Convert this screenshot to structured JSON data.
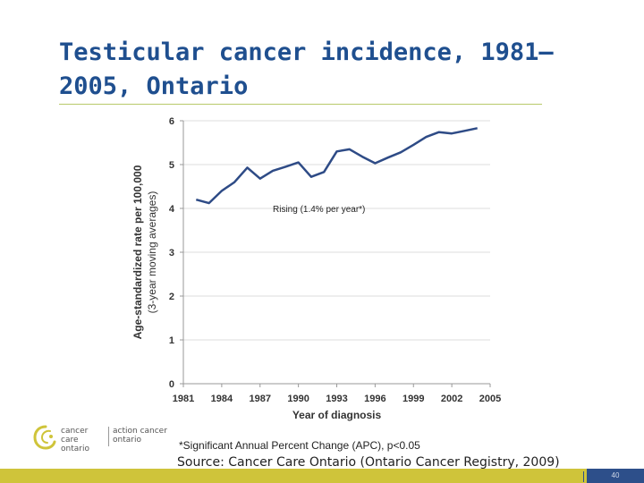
{
  "slide": {
    "title_line1": "Testicular cancer  incidence, 1981–",
    "title_line2": "2005, Ontario",
    "footnote": "*Significant Annual Percent Change (APC), p<0.05",
    "source": "Source: Cancer Care Ontario (Ontario Cancer Registry, 2009)",
    "page_number": "40",
    "logo_text_left": "cancer care ontario",
    "logo_text_right": "action cancer ontario",
    "colors": {
      "title": "#1f4f8f",
      "footer_bar": "#cfc43a",
      "footer_page": "#2d4f8a",
      "line": "#2e4b86",
      "logo": "#cfc43a"
    }
  },
  "chart_data": {
    "type": "line",
    "xlabel": "Year of diagnosis",
    "ylabel": "Age-standardized rate per 100,000",
    "ylabel_sub": "(3-year moving averages)",
    "xlim": [
      1981,
      2005
    ],
    "ylim": [
      0,
      6
    ],
    "xticks": [
      1981,
      1984,
      1987,
      1990,
      1993,
      1996,
      1999,
      2002,
      2005
    ],
    "yticks": [
      0,
      1,
      2,
      3,
      4,
      5,
      6
    ],
    "grid": "horizontal",
    "annotation": "Rising (1.4% per year*)",
    "series": [
      {
        "name": "",
        "x": [
          1982,
          1983,
          1984,
          1985,
          1986,
          1987,
          1988,
          1989,
          1990,
          1991,
          1992,
          1993,
          1994,
          1995,
          1996,
          1997,
          1998,
          1999,
          2000,
          2001,
          2002,
          2003,
          2004
        ],
        "values": [
          4.2,
          4.12,
          4.4,
          4.6,
          4.93,
          4.68,
          4.86,
          4.95,
          5.05,
          4.72,
          4.83,
          5.3,
          5.35,
          5.18,
          5.03,
          5.16,
          5.28,
          5.45,
          5.63,
          5.74,
          5.71,
          5.77,
          5.83
        ]
      }
    ]
  }
}
